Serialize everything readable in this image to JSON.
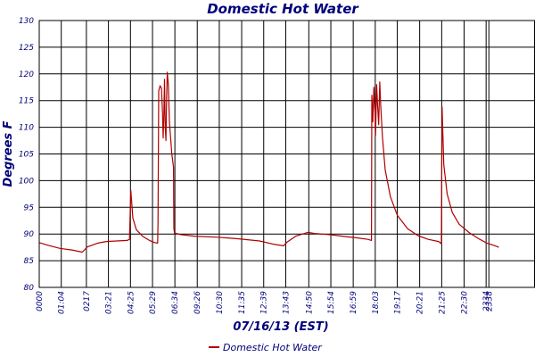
{
  "chart_data": {
    "type": "line",
    "title": "Domestic Hot Water",
    "xlabel": "07/16/13 (EST)",
    "ylabel": "Degrees F",
    "ylim": [
      80,
      130
    ],
    "y_ticks": [
      80,
      85,
      90,
      95,
      100,
      105,
      110,
      115,
      120,
      125,
      130
    ],
    "x_range_minutes": [
      0,
      1440
    ],
    "x_ticks": [
      {
        "label": "0000",
        "minute": 0
      },
      {
        "label": "01:04",
        "minute": 64
      },
      {
        "label": "0217",
        "minute": 137
      },
      {
        "label": "03:21",
        "minute": 201
      },
      {
        "label": "04:25",
        "minute": 265
      },
      {
        "label": "05:29",
        "minute": 329
      },
      {
        "label": "06:34",
        "minute": 394
      },
      {
        "label": "09:26",
        "minute": 459
      },
      {
        "label": "10:30",
        "minute": 523
      },
      {
        "label": "11:35",
        "minute": 588
      },
      {
        "label": "12:39",
        "minute": 652
      },
      {
        "label": "13:43",
        "minute": 716
      },
      {
        "label": "14:50",
        "minute": 783
      },
      {
        "label": "15:54",
        "minute": 847
      },
      {
        "label": "16:59",
        "minute": 912
      },
      {
        "label": "18:03",
        "minute": 976
      },
      {
        "label": "19:17",
        "minute": 1040
      },
      {
        "label": "20:21",
        "minute": 1105
      },
      {
        "label": "21:25",
        "minute": 1169
      },
      {
        "label": "22:30",
        "minute": 1234
      },
      {
        "label": "2334",
        "minute": 1298
      },
      {
        "label": "2338",
        "minute": 1306
      }
    ],
    "grid": true,
    "legend_position": "bottom-center",
    "series": [
      {
        "name": "Domestic Hot Water",
        "color": "#b00000",
        "points": [
          [
            0,
            88.4
          ],
          [
            25,
            87.9
          ],
          [
            60,
            87.3
          ],
          [
            95,
            87.0
          ],
          [
            125,
            86.6
          ],
          [
            140,
            87.6
          ],
          [
            170,
            88.3
          ],
          [
            195,
            88.6
          ],
          [
            225,
            88.7
          ],
          [
            255,
            88.8
          ],
          [
            262,
            89.0
          ],
          [
            266,
            98.2
          ],
          [
            272,
            93.0
          ],
          [
            282,
            90.8
          ],
          [
            300,
            89.6
          ],
          [
            320,
            88.8
          ],
          [
            335,
            88.4
          ],
          [
            344,
            88.3
          ],
          [
            345,
            92.0
          ],
          [
            347,
            116.8
          ],
          [
            351,
            117.8
          ],
          [
            355,
            117.3
          ],
          [
            358,
            113.0
          ],
          [
            360,
            108.0
          ],
          [
            362,
            112.5
          ],
          [
            364,
            119.0
          ],
          [
            366,
            110.0
          ],
          [
            368,
            107.5
          ],
          [
            370,
            116.0
          ],
          [
            372,
            120.3
          ],
          [
            375,
            118.0
          ],
          [
            378,
            111.0
          ],
          [
            385,
            105.0
          ],
          [
            390,
            102.5
          ],
          [
            391,
            91.0
          ],
          [
            393,
            90.2
          ],
          [
            410,
            89.9
          ],
          [
            450,
            89.6
          ],
          [
            520,
            89.4
          ],
          [
            580,
            89.1
          ],
          [
            640,
            88.7
          ],
          [
            680,
            88.1
          ],
          [
            710,
            87.8
          ],
          [
            720,
            88.5
          ],
          [
            745,
            89.6
          ],
          [
            780,
            90.3
          ],
          [
            800,
            90.1
          ],
          [
            840,
            89.9
          ],
          [
            880,
            89.6
          ],
          [
            920,
            89.3
          ],
          [
            955,
            89.0
          ],
          [
            965,
            88.8
          ],
          [
            966,
            116.0
          ],
          [
            969,
            111.0
          ],
          [
            972,
            117.5
          ],
          [
            975,
            113.0
          ],
          [
            977,
            108.5
          ],
          [
            980,
            118.0
          ],
          [
            983,
            114.0
          ],
          [
            986,
            110.5
          ],
          [
            989,
            118.5
          ],
          [
            992,
            114.0
          ],
          [
            997,
            108.0
          ],
          [
            1005,
            102.0
          ],
          [
            1020,
            97.0
          ],
          [
            1040,
            93.5
          ],
          [
            1070,
            91.0
          ],
          [
            1100,
            89.7
          ],
          [
            1130,
            89.0
          ],
          [
            1160,
            88.6
          ],
          [
            1168,
            88.2
          ],
          [
            1170,
            113.8
          ],
          [
            1175,
            103.0
          ],
          [
            1185,
            97.5
          ],
          [
            1200,
            94.0
          ],
          [
            1220,
            91.8
          ],
          [
            1250,
            90.2
          ],
          [
            1280,
            89.0
          ],
          [
            1300,
            88.3
          ],
          [
            1320,
            87.9
          ],
          [
            1335,
            87.5
          ]
        ]
      }
    ]
  }
}
